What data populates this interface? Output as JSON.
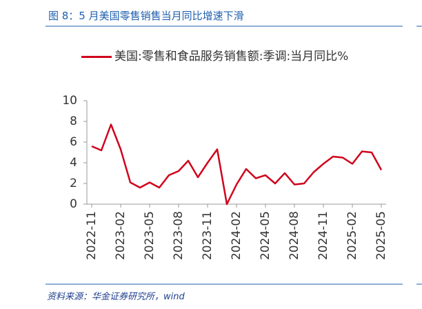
{
  "header": {
    "title": "图 8：5 月美国零售销售当月同比增速下滑"
  },
  "chart_data": {
    "type": "line",
    "categories": [
      "2022-11",
      null,
      null,
      "2023-02",
      null,
      null,
      "2023-05",
      null,
      null,
      "2023-08",
      null,
      null,
      "2023-11",
      null,
      null,
      "2024-02",
      null,
      null,
      "2024-05",
      null,
      null,
      "2024-08",
      null,
      null,
      "2024-11",
      null,
      null,
      "2025-02",
      null,
      null,
      "2025-05"
    ],
    "series": [
      {
        "name": "美国:零售和食品服务销售额:季调:当月同比%",
        "color": "#d0021b",
        "values": [
          5.6,
          5.2,
          7.7,
          5.3,
          2.1,
          1.6,
          2.1,
          1.6,
          2.8,
          3.2,
          4.2,
          2.6,
          4.0,
          5.3,
          0.0,
          1.9,
          3.4,
          2.5,
          2.8,
          2.0,
          3.0,
          1.9,
          2.0,
          3.1,
          3.9,
          4.6,
          4.5,
          3.9,
          5.1,
          5.0,
          3.3
        ]
      }
    ],
    "ylim": [
      0,
      10
    ],
    "yticks": [
      0,
      2,
      4,
      6,
      8,
      10
    ],
    "grid": false,
    "legend": "top"
  },
  "footer": {
    "source": "资料来源：华金证券研究所，wind"
  }
}
